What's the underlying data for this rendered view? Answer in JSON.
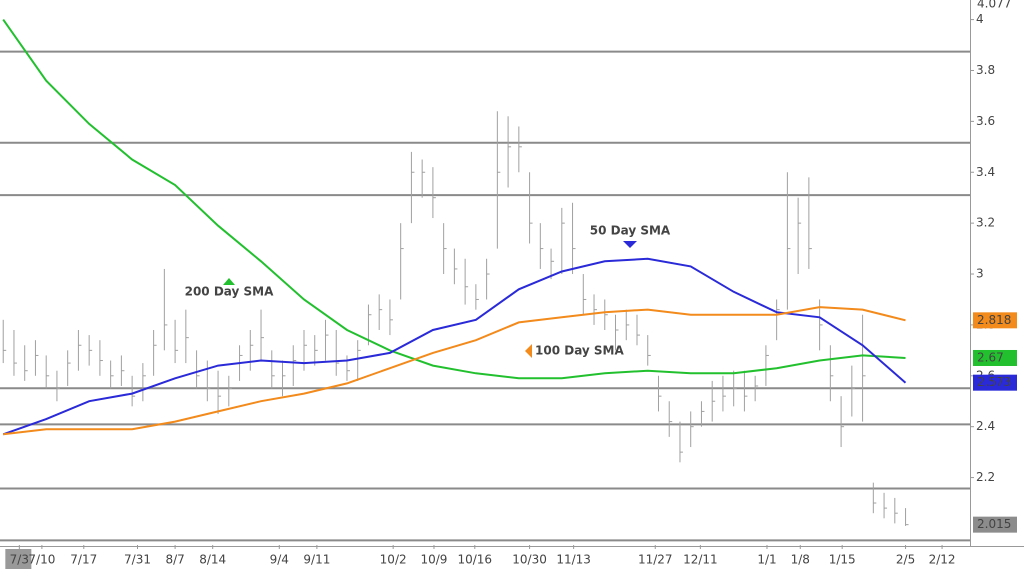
{
  "chart_data": {
    "type": "ohlc",
    "xlim": [
      -0.3,
      90
    ],
    "ylim": [
      1.935,
      4.077
    ],
    "xticks": [
      {
        "value": 1.5,
        "label": "7/3"
      },
      {
        "value": 3.6,
        "label": "7/10"
      },
      {
        "value": 7.5,
        "label": "7/17"
      },
      {
        "value": 12.5,
        "label": "7/31"
      },
      {
        "value": 16,
        "label": "8/7"
      },
      {
        "value": 19.5,
        "label": "8/14"
      },
      {
        "value": 25.7,
        "label": "9/4"
      },
      {
        "value": 29.2,
        "label": "9/11"
      },
      {
        "value": 36.3,
        "label": "10/2"
      },
      {
        "value": 40.1,
        "label": "10/9"
      },
      {
        "value": 43.9,
        "label": "10/16"
      },
      {
        "value": 49,
        "label": "10/30"
      },
      {
        "value": 53.1,
        "label": "11/13"
      },
      {
        "value": 60.7,
        "label": "11/27"
      },
      {
        "value": 64.9,
        "label": "12/11"
      },
      {
        "value": 71.1,
        "label": "1/1"
      },
      {
        "value": 74.2,
        "label": "1/8"
      },
      {
        "value": 78.1,
        "label": "1/15"
      },
      {
        "value": 84,
        "label": "2/5"
      },
      {
        "value": 87.4,
        "label": "2/12"
      }
    ],
    "yticks": [
      2.2,
      2.4,
      2.6,
      2.8,
      3,
      3.2,
      3.4,
      3.6,
      3.8,
      4
    ],
    "levels": [
      3.874,
      3.516,
      3.31,
      2.551,
      2.409,
      2.157,
      1.953
    ],
    "price": {
      "color": "#a0a0a0",
      "high": [
        2.82,
        2.78,
        2.72,
        2.74,
        2.68,
        2.62,
        2.7,
        2.78,
        2.76,
        2.74,
        2.66,
        2.68,
        2.6,
        2.65,
        2.78,
        3.02,
        2.82,
        2.86,
        2.7,
        2.66,
        2.62,
        2.6,
        2.72,
        2.78,
        2.86,
        2.7,
        2.66,
        2.72,
        2.78,
        2.76,
        2.82,
        2.78,
        2.68,
        2.74,
        2.88,
        2.92,
        2.9,
        3.2,
        3.48,
        3.45,
        3.42,
        3.2,
        3.1,
        3.06,
        2.96,
        3.06,
        3.64,
        3.62,
        3.58,
        3.4,
        3.2,
        3.1,
        3.26,
        3.28,
        3.0,
        2.92,
        2.9,
        2.84,
        2.86,
        2.84,
        2.76,
        2.6,
        2.5,
        2.42,
        2.46,
        2.5,
        2.58,
        2.6,
        2.62,
        2.62,
        2.6,
        2.72,
        2.9,
        3.4,
        3.3,
        3.38,
        2.9,
        2.72,
        2.52,
        2.64,
        2.84,
        2.18,
        2.14,
        2.12,
        2.08
      ],
      "low": [
        2.65,
        2.6,
        2.58,
        2.6,
        2.55,
        2.5,
        2.56,
        2.62,
        2.64,
        2.6,
        2.55,
        2.56,
        2.48,
        2.5,
        2.6,
        2.7,
        2.65,
        2.65,
        2.55,
        2.5,
        2.45,
        2.48,
        2.58,
        2.62,
        2.66,
        2.55,
        2.52,
        2.56,
        2.62,
        2.64,
        2.66,
        2.6,
        2.58,
        2.58,
        2.72,
        2.78,
        2.76,
        2.9,
        3.2,
        3.3,
        3.22,
        3.0,
        2.96,
        2.88,
        2.86,
        2.9,
        3.1,
        3.34,
        3.4,
        3.12,
        3.02,
        2.98,
        3.0,
        3.0,
        2.84,
        2.8,
        2.78,
        2.7,
        2.74,
        2.72,
        2.64,
        2.46,
        2.36,
        2.26,
        2.32,
        2.4,
        2.42,
        2.46,
        2.48,
        2.46,
        2.5,
        2.56,
        2.74,
        2.86,
        3.0,
        3.02,
        2.7,
        2.5,
        2.32,
        2.44,
        2.42,
        2.06,
        2.04,
        2.02,
        2.01
      ],
      "close": [
        2.7,
        2.65,
        2.62,
        2.68,
        2.6,
        2.55,
        2.65,
        2.72,
        2.7,
        2.66,
        2.6,
        2.62,
        2.52,
        2.6,
        2.72,
        2.8,
        2.7,
        2.75,
        2.6,
        2.55,
        2.52,
        2.55,
        2.68,
        2.72,
        2.75,
        2.6,
        2.6,
        2.66,
        2.72,
        2.7,
        2.76,
        2.65,
        2.62,
        2.7,
        2.84,
        2.86,
        2.82,
        3.1,
        3.4,
        3.4,
        3.3,
        3.1,
        3.02,
        2.95,
        2.9,
        3.0,
        3.4,
        3.5,
        3.5,
        3.2,
        3.1,
        3.05,
        3.2,
        3.1,
        2.9,
        2.86,
        2.84,
        2.78,
        2.8,
        2.76,
        2.68,
        2.52,
        2.42,
        2.3,
        2.4,
        2.46,
        2.5,
        2.52,
        2.55,
        2.52,
        2.56,
        2.68,
        2.86,
        3.1,
        3.2,
        3.1,
        2.8,
        2.6,
        2.4,
        2.55,
        2.6,
        2.1,
        2.08,
        2.06,
        2.015
      ]
    },
    "series": [
      {
        "name": "200 Day SMA",
        "color": "#22c02e",
        "x": [
          0,
          4,
          8,
          12,
          16,
          20,
          24,
          28,
          32,
          36,
          40,
          44,
          48,
          52,
          56,
          60,
          64,
          68,
          72,
          76,
          80,
          84
        ],
        "values": [
          4.0,
          3.76,
          3.59,
          3.45,
          3.35,
          3.19,
          3.05,
          2.9,
          2.78,
          2.7,
          2.64,
          2.61,
          2.59,
          2.59,
          2.61,
          2.62,
          2.61,
          2.61,
          2.63,
          2.66,
          2.68,
          2.67
        ]
      },
      {
        "name": "50 Day SMA",
        "color": "#2a2ad8",
        "x": [
          0,
          4,
          8,
          12,
          16,
          20,
          24,
          28,
          32,
          36,
          40,
          44,
          48,
          52,
          56,
          60,
          64,
          68,
          72,
          76,
          80,
          84
        ],
        "values": [
          2.37,
          2.43,
          2.5,
          2.53,
          2.59,
          2.64,
          2.66,
          2.65,
          2.66,
          2.69,
          2.78,
          2.82,
          2.94,
          3.01,
          3.05,
          3.06,
          3.03,
          2.93,
          2.85,
          2.83,
          2.72,
          2.573
        ]
      },
      {
        "name": "100  Day SMA",
        "color": "#f28a1c",
        "x": [
          0,
          4,
          8,
          12,
          16,
          20,
          24,
          28,
          32,
          36,
          40,
          44,
          48,
          52,
          56,
          60,
          64,
          68,
          72,
          76,
          80,
          84
        ],
        "values": [
          2.37,
          2.39,
          2.39,
          2.39,
          2.42,
          2.46,
          2.5,
          2.53,
          2.57,
          2.63,
          2.69,
          2.74,
          2.81,
          2.83,
          2.85,
          2.86,
          2.84,
          2.84,
          2.84,
          2.87,
          2.86,
          2.818
        ]
      }
    ]
  }
}
